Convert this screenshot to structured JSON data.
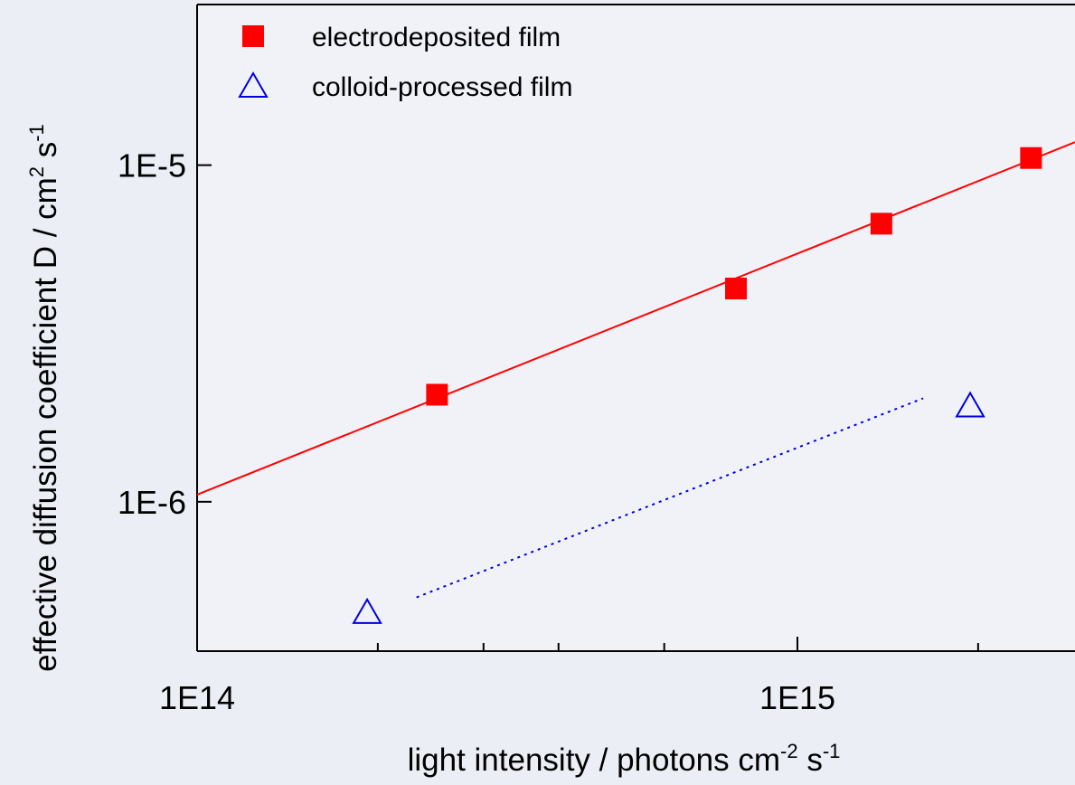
{
  "chart_data": {
    "type": "scatter",
    "xscale": "log",
    "yscale": "log",
    "x_label_parts": [
      "light intensity / photons cm",
      "-2",
      " s",
      "-1"
    ],
    "y_label_parts": [
      "effective diffusion coefficient D / cm",
      "2",
      " s",
      "-1"
    ],
    "xlim": [
      100000000000000.0,
      2900000000000000.0
    ],
    "ylim": [
      3.6e-07,
      3e-05
    ],
    "xticks": [
      {
        "value": 100000000000000.0,
        "label": "1E14"
      },
      {
        "value": 1000000000000000.0,
        "label": "1E15"
      }
    ],
    "xminorticks": [
      200000000000000.0,
      300000000000000.0,
      400000000000000.0,
      600000000000000.0,
      2000000000000000.0
    ],
    "yticks": [
      {
        "value": 1e-06,
        "label": "1E-6"
      },
      {
        "value": 1e-05,
        "label": "1E-5"
      }
    ],
    "legend": "upper left",
    "series": [
      {
        "name": "electrodeposited film",
        "color": "#ff0000",
        "marker": "square",
        "x": [
          251000000000000.0,
          790000000000000.0,
          1380000000000000.0,
          2450000000000000.0
        ],
        "values": [
          2.08e-06,
          4.3e-06,
          6.7e-06,
          1.05e-05
        ]
      },
      {
        "name": "colloid-processed film",
        "color": "#0000dd",
        "marker": "triangle",
        "x": [
          192000000000000.0,
          1940000000000000.0
        ],
        "values": [
          4.7e-07,
          1.93e-06
        ]
      }
    ],
    "fits": [
      {
        "color": "#ff0000",
        "style": "solid",
        "x": [
          100000000000000.0,
          2900000000000000.0
        ],
        "values": [
          1.05e-06,
          1.17e-05
        ]
      },
      {
        "color": "#0000dd",
        "style": "dotted",
        "x": [
          232000000000000.0,
          1620000000000000.0
        ],
        "values": [
          5.2e-07,
          2.03e-06
        ]
      }
    ]
  }
}
